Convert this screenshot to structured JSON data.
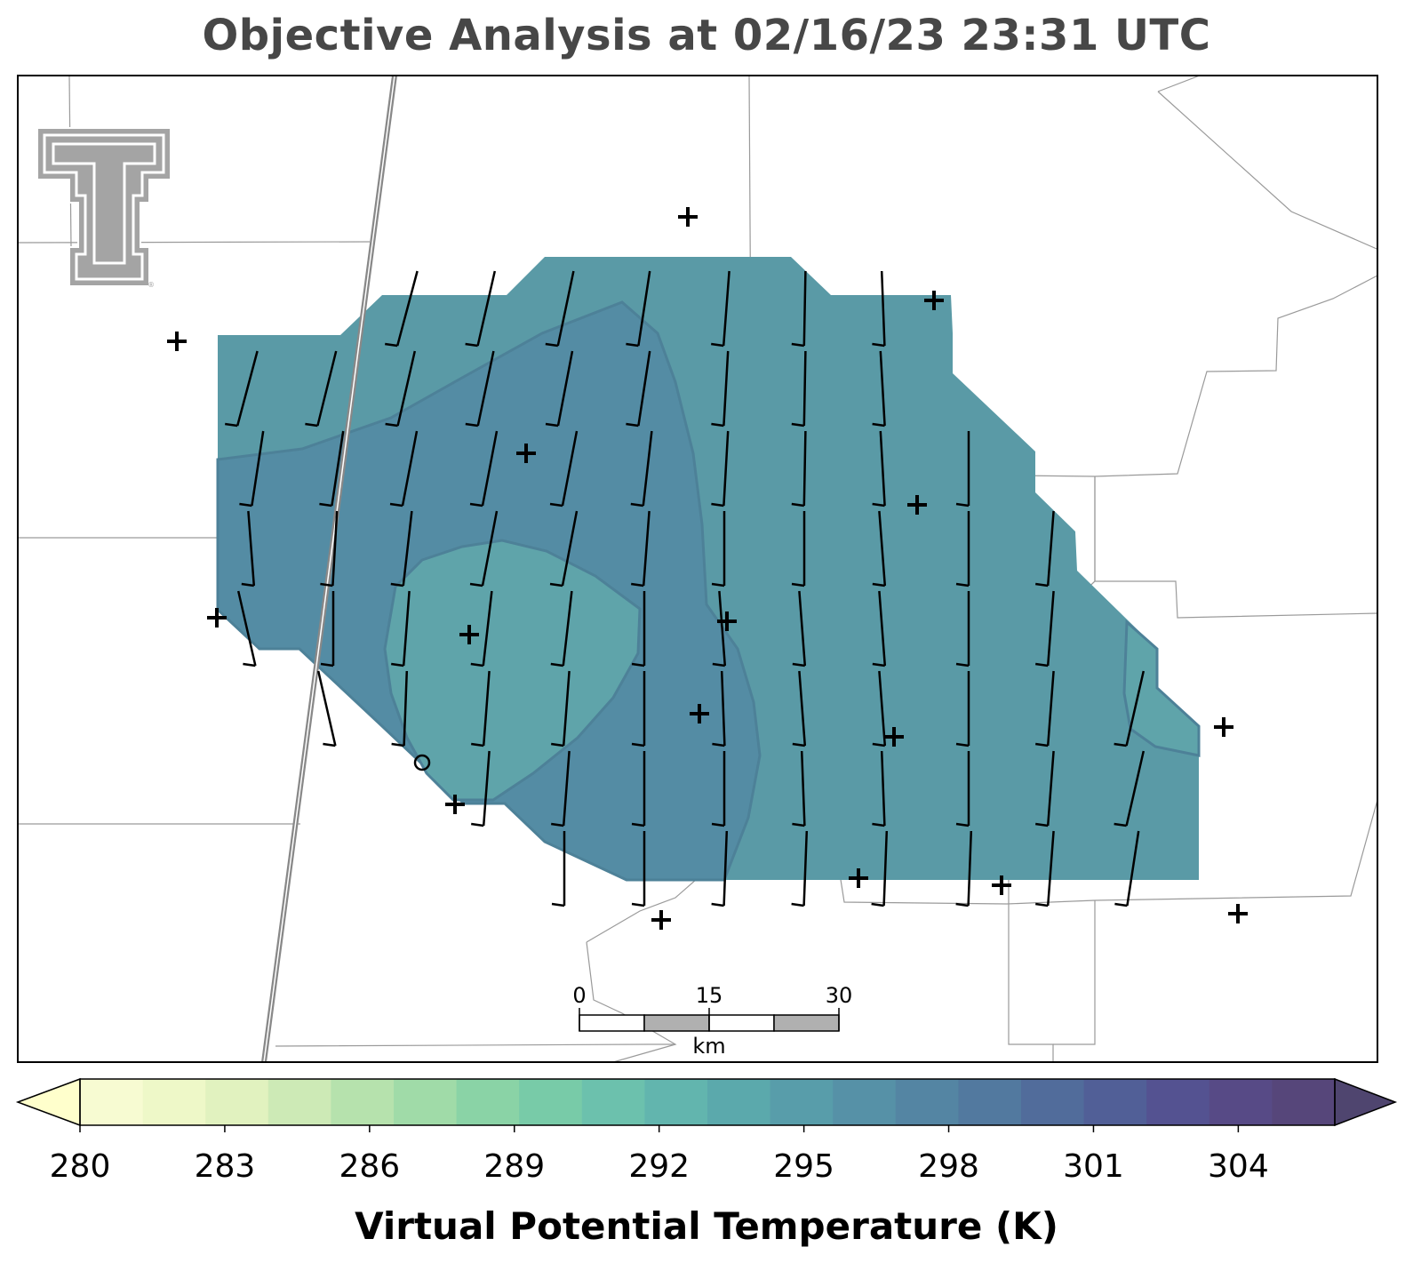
{
  "title": "Objective Analysis at 02/16/23 23:31 UTC",
  "colorbar": {
    "label": "Virtual Potential Temperature (K)",
    "ticks": [
      "280",
      "283",
      "286",
      "289",
      "292",
      "295",
      "298",
      "301",
      "304"
    ],
    "min": 280,
    "max": 306,
    "colors": [
      "#f7fbd2",
      "#eef8c8",
      "#e1f2bf",
      "#cdeab6",
      "#b6e2ad",
      "#a0dba8",
      "#8ad3a6",
      "#78cba8",
      "#6cc1ad",
      "#62b5ae",
      "#5ba9ac",
      "#589daa",
      "#5691a7",
      "#5485a3",
      "#52799f",
      "#516c9b",
      "#515f97",
      "#545291",
      "#574a86",
      "#56467a"
    ],
    "under_color": "#ffffcc",
    "over_color": "#4f456f"
  },
  "analysis": {
    "outer_field_color": "#5a9aa6",
    "inner_warm_color": "#548ca4",
    "cool_pocket_color": "#5fa4aa"
  },
  "scale_bar": {
    "unit": "km",
    "labels": [
      "0",
      "15",
      "30"
    ]
  },
  "logo": "texas-tech-double-t-logo"
}
